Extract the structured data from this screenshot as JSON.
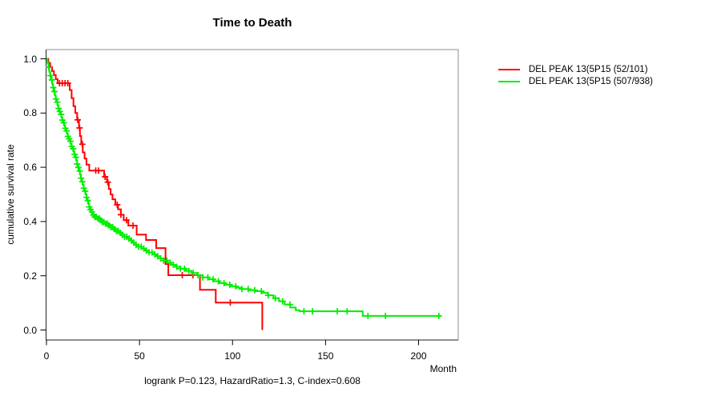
{
  "chart_data": {
    "type": "line",
    "subtype": "kaplan-meier-step-curves",
    "title": "Time to Death",
    "xlabel": "Month",
    "ylabel": "cumulative survival rate",
    "caption": "logrank P=0.123, HazardRatio=1.3, C-index=0.608",
    "stats": {
      "logrank_p": 0.123,
      "hazard_ratio": 1.3,
      "c_index": 0.608
    },
    "xlim": [
      0,
      221
    ],
    "ylim": [
      0.0,
      1.0
    ],
    "x_ticks": [
      0,
      50,
      100,
      150,
      200
    ],
    "y_ticks": [
      0.0,
      0.2,
      0.4,
      0.6,
      0.8,
      1.0
    ],
    "grid": false,
    "legend_position": "right-outside",
    "series": [
      {
        "label": "DEL PEAK 13(5P15 (52/101)",
        "color": "#ff0000",
        "events_over_n": "52/101",
        "points": [
          [
            0,
            1.0
          ],
          [
            1,
            0.985
          ],
          [
            2,
            0.97
          ],
          [
            3,
            0.955
          ],
          [
            4,
            0.94
          ],
          [
            5,
            0.925
          ],
          [
            6,
            0.91
          ],
          [
            12.5,
            0.885
          ],
          [
            13.5,
            0.855
          ],
          [
            14.5,
            0.825
          ],
          [
            15.5,
            0.8
          ],
          [
            16.5,
            0.775
          ],
          [
            17.5,
            0.745
          ],
          [
            18,
            0.715
          ],
          [
            18.7,
            0.685
          ],
          [
            19.5,
            0.655
          ],
          [
            20.5,
            0.632
          ],
          [
            21.5,
            0.61
          ],
          [
            23,
            0.588
          ],
          [
            31,
            0.565
          ],
          [
            32.5,
            0.545
          ],
          [
            33.5,
            0.52
          ],
          [
            34.5,
            0.5
          ],
          [
            35.5,
            0.482
          ],
          [
            37,
            0.462
          ],
          [
            38.5,
            0.445
          ],
          [
            40,
            0.425
          ],
          [
            41.5,
            0.405
          ],
          [
            44,
            0.385
          ],
          [
            48.5,
            0.352
          ],
          [
            53.5,
            0.332
          ],
          [
            59,
            0.302
          ],
          [
            64,
            0.243
          ],
          [
            65.5,
            0.202
          ],
          [
            82.5,
            0.148
          ],
          [
            91,
            0.101
          ],
          [
            116,
            0.0
          ]
        ],
        "end_month": 116,
        "censor_months": [
          7,
          8.5,
          10,
          11.5,
          16.8,
          17.8,
          19.3,
          26.5,
          28,
          31.5,
          33,
          38,
          40,
          43,
          46.5,
          73,
          78.7,
          98.8
        ]
      },
      {
        "label": "DEL PEAK 13(5P15 (507/938)",
        "color": "#00ee00",
        "events_over_n": "507/938",
        "points": [
          [
            0,
            1.0
          ],
          [
            0.5,
            0.985
          ],
          [
            1,
            0.968
          ],
          [
            1.5,
            0.952
          ],
          [
            2,
            0.938
          ],
          [
            2.5,
            0.922
          ],
          [
            3,
            0.908
          ],
          [
            3.5,
            0.894
          ],
          [
            4,
            0.879
          ],
          [
            4.5,
            0.865
          ],
          [
            5,
            0.852
          ],
          [
            5.5,
            0.84
          ],
          [
            6,
            0.828
          ],
          [
            6.5,
            0.817
          ],
          [
            7,
            0.806
          ],
          [
            7.5,
            0.795
          ],
          [
            8,
            0.784
          ],
          [
            8.5,
            0.774
          ],
          [
            9,
            0.764
          ],
          [
            9.5,
            0.754
          ],
          [
            10,
            0.744
          ],
          [
            10.5,
            0.734
          ],
          [
            11,
            0.724
          ],
          [
            11.5,
            0.714
          ],
          [
            12,
            0.705
          ],
          [
            12.5,
            0.696
          ],
          [
            13,
            0.687
          ],
          [
            13.5,
            0.677
          ],
          [
            14,
            0.668
          ],
          [
            14.5,
            0.658
          ],
          [
            15,
            0.648
          ],
          [
            15.5,
            0.637
          ],
          [
            16,
            0.625
          ],
          [
            16.5,
            0.612
          ],
          [
            17,
            0.599
          ],
          [
            17.5,
            0.586
          ],
          [
            18,
            0.573
          ],
          [
            18.5,
            0.56
          ],
          [
            19,
            0.547
          ],
          [
            19.5,
            0.535
          ],
          [
            20,
            0.523
          ],
          [
            20.5,
            0.512
          ],
          [
            21,
            0.5
          ],
          [
            21.5,
            0.489
          ],
          [
            22,
            0.477
          ],
          [
            22.5,
            0.465
          ],
          [
            23,
            0.454
          ],
          [
            23.5,
            0.444
          ],
          [
            24,
            0.436
          ],
          [
            24.5,
            0.43
          ],
          [
            25,
            0.424
          ],
          [
            26,
            0.417
          ],
          [
            27,
            0.411
          ],
          [
            28.5,
            0.405
          ],
          [
            30,
            0.398
          ],
          [
            31.5,
            0.392
          ],
          [
            33,
            0.386
          ],
          [
            34.5,
            0.379
          ],
          [
            36,
            0.372
          ],
          [
            37.5,
            0.365
          ],
          [
            39,
            0.358
          ],
          [
            40.5,
            0.351
          ],
          [
            42,
            0.344
          ],
          [
            43.5,
            0.337
          ],
          [
            45,
            0.33
          ],
          [
            46.5,
            0.322
          ],
          [
            48,
            0.314
          ],
          [
            49.5,
            0.307
          ],
          [
            51,
            0.3
          ],
          [
            53,
            0.293
          ],
          [
            55,
            0.286
          ],
          [
            57,
            0.279
          ],
          [
            59,
            0.272
          ],
          [
            61,
            0.264
          ],
          [
            63,
            0.256
          ],
          [
            65,
            0.248
          ],
          [
            67,
            0.24
          ],
          [
            69.5,
            0.233
          ],
          [
            72,
            0.226
          ],
          [
            75,
            0.218
          ],
          [
            78,
            0.21
          ],
          [
            81,
            0.202
          ],
          [
            84,
            0.194
          ],
          [
            87,
            0.187
          ],
          [
            90,
            0.18
          ],
          [
            93,
            0.173
          ],
          [
            96,
            0.167
          ],
          [
            99,
            0.161
          ],
          [
            102,
            0.156
          ],
          [
            105,
            0.151
          ],
          [
            108.5,
            0.147
          ],
          [
            112,
            0.143
          ],
          [
            116,
            0.137
          ],
          [
            119,
            0.128
          ],
          [
            122,
            0.117
          ],
          [
            125,
            0.106
          ],
          [
            128,
            0.094
          ],
          [
            131,
            0.083
          ],
          [
            134,
            0.073
          ],
          [
            136,
            0.069
          ],
          [
            170,
            0.052
          ]
        ],
        "end_month": 211.6,
        "censor_months": [
          1.3,
          2.1,
          2.9,
          3.6,
          4.3,
          5.1,
          5.8,
          6.5,
          7.2,
          7.9,
          8.6,
          9.3,
          10.1,
          10.8,
          11.5,
          12.2,
          12.9,
          13.6,
          14.3,
          15.1,
          15.8,
          16.5,
          17.2,
          17.9,
          18.6,
          19.3,
          20.1,
          20.8,
          21.5,
          22.2,
          23,
          23.7,
          24.4,
          25.2,
          26,
          26.8,
          27.6,
          28.4,
          29.2,
          30,
          30.9,
          31.8,
          32.7,
          33.6,
          34.6,
          35.6,
          36.6,
          37.6,
          38.6,
          39.7,
          40.8,
          42,
          43.2,
          44.4,
          45.6,
          46.9,
          48.2,
          49.5,
          50.9,
          52.3,
          53.7,
          55.2,
          56.7,
          58.2,
          59.8,
          61.4,
          63,
          64.7,
          66.4,
          68.2,
          70,
          72,
          74.2,
          76.5,
          78.9,
          81.4,
          84,
          86.7,
          89.5,
          92.4,
          95.4,
          98.5,
          101.7,
          105,
          108.4,
          111.9,
          115.5,
          119.2,
          123,
          126.9,
          130.9,
          138.4,
          143,
          156.3,
          161.6,
          172.8,
          182.2,
          210.9
        ]
      }
    ]
  }
}
